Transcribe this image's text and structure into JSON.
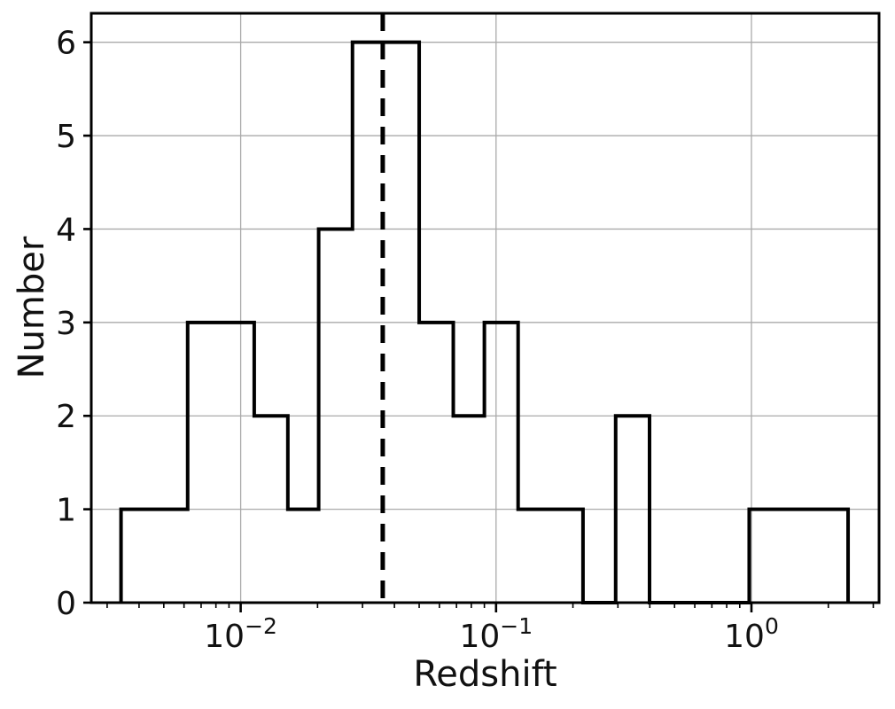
{
  "figure": {
    "background": "#ffffff"
  },
  "chart_data": {
    "type": "histogram",
    "style": "step-outline",
    "title": "",
    "xlabel": "Redshift",
    "ylabel": "Number",
    "xscale": "log",
    "xlim": [
      0.0026,
      3.16
    ],
    "ylim": [
      0,
      6.31
    ],
    "grid": true,
    "legend": "none",
    "bin_edges": [
      0.0034,
      0.0062,
      0.0113,
      0.0153,
      0.0202,
      0.0274,
      0.05,
      0.068,
      0.09,
      0.122,
      0.219,
      0.294,
      0.399,
      0.98,
      2.39
    ],
    "counts": [
      1,
      3,
      2,
      1,
      4,
      6,
      3,
      2,
      3,
      1,
      0,
      2,
      0,
      1
    ],
    "vline": {
      "x": 0.036,
      "style": "dashed",
      "color": "#000000"
    },
    "yticks": [
      0,
      1,
      2,
      3,
      4,
      5,
      6
    ],
    "xticks": [
      {
        "v": 0.01,
        "base": "10",
        "exp": "−2"
      },
      {
        "v": 0.1,
        "base": "10",
        "exp": "−1"
      },
      {
        "v": 1,
        "base": "10",
        "exp": "0"
      }
    ],
    "colors": {
      "line": "#000000",
      "spine": "#000000",
      "grid": "#aaaaaa",
      "text": "#111111",
      "background": "#ffffff"
    }
  }
}
